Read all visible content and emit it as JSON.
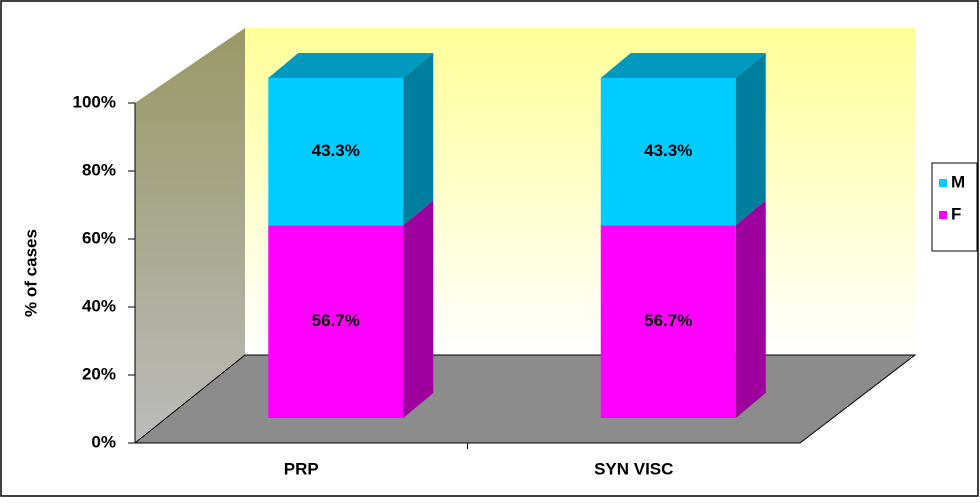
{
  "chart_data": {
    "type": "bar",
    "stacked": true,
    "ylabel": "% of cases",
    "categories": [
      "PRP",
      "SYN VISC"
    ],
    "series": [
      {
        "name": "F",
        "color": "#ff00ff",
        "values": [
          56.7,
          56.7
        ],
        "value_labels": [
          "56.7%",
          "56.7%"
        ]
      },
      {
        "name": "M",
        "color": "#00ccff",
        "values": [
          43.3,
          43.3
        ],
        "value_labels": [
          "43.3%",
          "43.3%"
        ]
      }
    ],
    "ylim": [
      0,
      100
    ],
    "yticks": [
      {
        "value": 0,
        "label": "0%"
      },
      {
        "value": 20,
        "label": "20%"
      },
      {
        "value": 40,
        "label": "40%"
      },
      {
        "value": 60,
        "label": "60%"
      },
      {
        "value": 80,
        "label": "80%"
      },
      {
        "value": 100,
        "label": "100%"
      }
    ],
    "legend": "right"
  }
}
